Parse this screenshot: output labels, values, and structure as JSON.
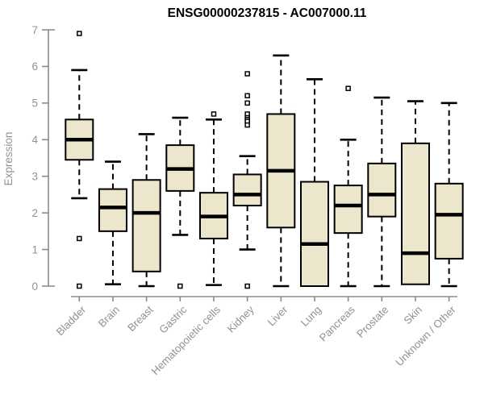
{
  "chart_data": {
    "type": "boxplot",
    "title": "ENSG00000237815 - AC007000.11",
    "xlabel": "",
    "ylabel": "Expression",
    "ylim": [
      0,
      7
    ],
    "yticks": [
      0,
      1,
      2,
      3,
      4,
      5,
      6,
      7
    ],
    "grid": false,
    "legend": "none",
    "categories": [
      "Bladder",
      "Brain",
      "Breast",
      "Gastric",
      "Hematopoietic cells",
      "Kidney",
      "Liver",
      "Lung",
      "Pancreas",
      "Prostate",
      "Skin",
      "Unknown / Other"
    ],
    "series": [
      {
        "name": "Bladder",
        "low": 2.4,
        "q1": 3.45,
        "median": 4.0,
        "q3": 4.55,
        "high": 5.9,
        "outliers": [
          6.9,
          1.3,
          0.0
        ]
      },
      {
        "name": "Brain",
        "low": 0.05,
        "q1": 1.5,
        "median": 2.15,
        "q3": 2.65,
        "high": 3.4,
        "outliers": []
      },
      {
        "name": "Breast",
        "low": 0.0,
        "q1": 0.4,
        "median": 2.0,
        "q3": 2.9,
        "high": 4.15,
        "outliers": []
      },
      {
        "name": "Gastric",
        "low": 1.4,
        "q1": 2.6,
        "median": 3.2,
        "q3": 3.85,
        "high": 4.6,
        "outliers": [
          0.0
        ]
      },
      {
        "name": "Hematopoietic cells",
        "low": 0.03,
        "q1": 1.3,
        "median": 1.9,
        "q3": 2.55,
        "high": 4.55,
        "outliers": [
          4.7
        ]
      },
      {
        "name": "Kidney",
        "low": 1.0,
        "q1": 2.2,
        "median": 2.5,
        "q3": 3.05,
        "high": 3.55,
        "outliers": [
          5.8,
          5.2,
          5.0,
          4.7,
          4.6,
          4.55,
          4.5,
          4.4,
          0.0
        ]
      },
      {
        "name": "Liver",
        "low": 0.0,
        "q1": 1.6,
        "median": 3.15,
        "q3": 4.7,
        "high": 6.3,
        "outliers": []
      },
      {
        "name": "Lung",
        "low": 0.0,
        "q1": 0.0,
        "median": 1.15,
        "q3": 2.85,
        "high": 5.65,
        "outliers": []
      },
      {
        "name": "Pancreas",
        "low": 0.0,
        "q1": 1.45,
        "median": 2.2,
        "q3": 2.75,
        "high": 4.0,
        "outliers": [
          5.4
        ]
      },
      {
        "name": "Prostate",
        "low": 0.0,
        "q1": 1.9,
        "median": 2.5,
        "q3": 3.35,
        "high": 5.15,
        "outliers": []
      },
      {
        "name": "Skin",
        "low": 0.05,
        "q1": 0.05,
        "median": 0.9,
        "q3": 3.9,
        "high": 5.05,
        "outliers": []
      },
      {
        "name": "Unknown / Other",
        "low": 0.0,
        "q1": 0.75,
        "median": 1.95,
        "q3": 2.8,
        "high": 5.0,
        "outliers": []
      }
    ],
    "colors": {
      "box_fill": "#ECE6CC",
      "box_stroke": "#000000",
      "median": "#000000",
      "whisker": "#000000",
      "outlier_stroke": "#000000",
      "outlier_fill": "#ffffff",
      "axis_line": "#8a8a8a",
      "axis_text": "#929292",
      "title": "#000000",
      "background": "#ffffff"
    }
  }
}
